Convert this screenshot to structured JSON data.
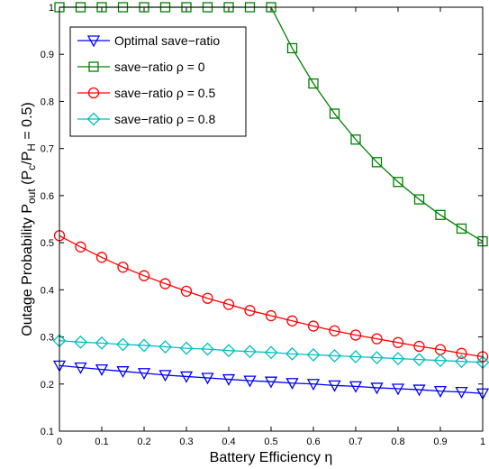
{
  "chart_data": {
    "type": "line",
    "title": "",
    "xlabel": "Battery Efficiency η",
    "ylabel": {
      "main": "Outage Probability P",
      "main_sub": "out",
      "paren_open": " (P",
      "sub_c": "c",
      "slash": "/P",
      "sub_H": "H",
      "tail": " = 0.5)"
    },
    "xlim": [
      0,
      1
    ],
    "ylim": [
      0.1,
      1.0
    ],
    "xticks": [
      "0",
      "0.1",
      "0.2",
      "0.3",
      "0.4",
      "0.5",
      "0.6",
      "0.7",
      "0.8",
      "0.9",
      "1"
    ],
    "yticks": [
      "0.1",
      "0.2",
      "0.3",
      "0.4",
      "0.5",
      "0.6",
      "0.7",
      "0.8",
      "0.9",
      "1"
    ],
    "grid": false,
    "legend_position": "top-left",
    "x": [
      0,
      0.05,
      0.1,
      0.15,
      0.2,
      0.25,
      0.3,
      0.35,
      0.4,
      0.45,
      0.5,
      0.55,
      0.6,
      0.65,
      0.7,
      0.75,
      0.8,
      0.85,
      0.9,
      0.95,
      1.0
    ],
    "series": [
      {
        "name": "Optimal save−ratio",
        "color": "#0000ff",
        "marker": "triangle-down",
        "values": [
          0.239,
          0.235,
          0.231,
          0.227,
          0.223,
          0.219,
          0.216,
          0.213,
          0.21,
          0.207,
          0.205,
          0.202,
          0.2,
          0.197,
          0.195,
          0.192,
          0.19,
          0.188,
          0.185,
          0.183,
          0.18
        ]
      },
      {
        "name": "save−ratio ρ = 0",
        "color": "#008000",
        "marker": "square",
        "values": [
          1.0,
          1.0,
          1.0,
          1.0,
          1.0,
          1.0,
          1.0,
          1.0,
          1.0,
          1.0,
          1.0,
          0.913,
          0.838,
          0.774,
          0.719,
          0.671,
          0.629,
          0.592,
          0.559,
          0.53,
          0.503
        ]
      },
      {
        "name": "save−ratio ρ = 0.5",
        "color": "#ff0000",
        "marker": "circle",
        "values": [
          0.515,
          0.491,
          0.469,
          0.448,
          0.43,
          0.413,
          0.397,
          0.382,
          0.369,
          0.356,
          0.345,
          0.334,
          0.323,
          0.313,
          0.304,
          0.296,
          0.288,
          0.28,
          0.273,
          0.265,
          0.258
        ]
      },
      {
        "name": "save−ratio ρ = 0.8",
        "color": "#00bfbf",
        "marker": "diamond",
        "values": [
          0.292,
          0.289,
          0.287,
          0.284,
          0.282,
          0.279,
          0.276,
          0.274,
          0.271,
          0.269,
          0.267,
          0.264,
          0.262,
          0.26,
          0.258,
          0.256,
          0.254,
          0.252,
          0.25,
          0.248,
          0.246
        ]
      }
    ]
  }
}
